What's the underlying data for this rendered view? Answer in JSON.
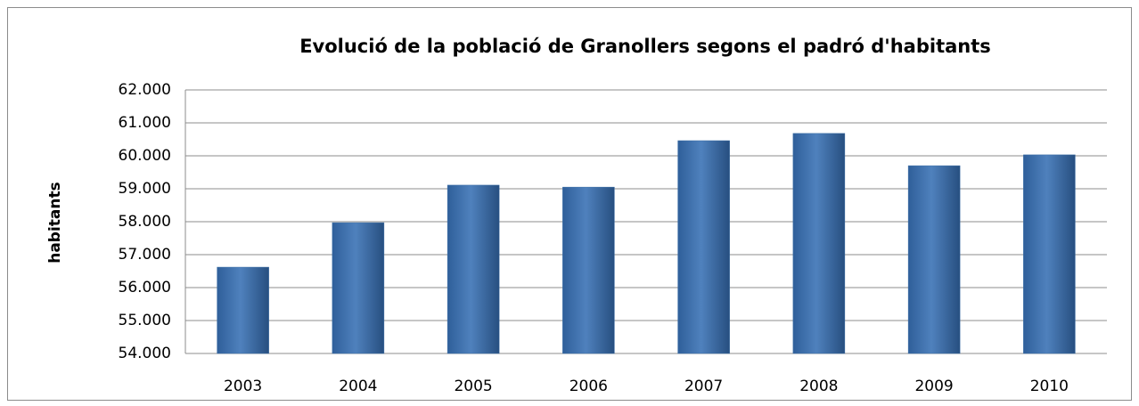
{
  "chart_data": {
    "type": "bar",
    "title": "Evolució de la població de Granollers segons el padró d'habitants",
    "y_label": "habitants",
    "categories": [
      "2003",
      "2004",
      "2005",
      "2006",
      "2007",
      "2008",
      "2009",
      "2010"
    ],
    "values": [
      56620,
      57970,
      59110,
      59050,
      60460,
      60680,
      59700,
      60030
    ],
    "color": "#4f81bd",
    "ylim": [
      54000,
      62000
    ],
    "yticks": [
      {
        "value": 54000,
        "label": "54.000"
      },
      {
        "value": 55000,
        "label": "55.000"
      },
      {
        "value": 56000,
        "label": "56.000"
      },
      {
        "value": 57000,
        "label": "57.000"
      },
      {
        "value": 58000,
        "label": "58.000"
      },
      {
        "value": 59000,
        "label": "59.000"
      },
      {
        "value": 60000,
        "label": "60.000"
      },
      {
        "value": 61000,
        "label": "61.000"
      },
      {
        "value": 62000,
        "label": "62.000"
      }
    ],
    "grid": true
  }
}
